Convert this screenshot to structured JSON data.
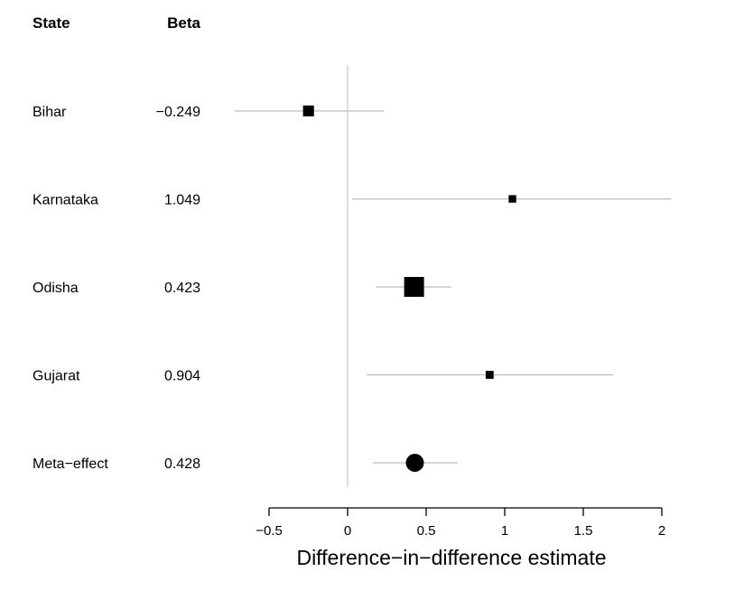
{
  "chart_data": {
    "type": "forest",
    "col_headers": {
      "label": "State",
      "value": "Beta"
    },
    "rows": [
      {
        "label": "Bihar",
        "beta_text": "−0.249",
        "estimate": -0.249,
        "ci_low": -0.72,
        "ci_high": 0.23,
        "marker": "square",
        "weight": 0.55
      },
      {
        "label": "Karnataka",
        "beta_text": "1.049",
        "estimate": 1.049,
        "ci_low": 0.03,
        "ci_high": 2.06,
        "marker": "square",
        "weight": 0.38
      },
      {
        "label": "Odisha",
        "beta_text": "0.423",
        "estimate": 0.423,
        "ci_low": 0.18,
        "ci_high": 0.66,
        "marker": "square",
        "weight": 1.0
      },
      {
        "label": "Gujarat",
        "beta_text": "0.904",
        "estimate": 0.904,
        "ci_low": 0.12,
        "ci_high": 1.69,
        "marker": "square",
        "weight": 0.4
      },
      {
        "label": "Meta−effect",
        "beta_text": "0.428",
        "estimate": 0.428,
        "ci_low": 0.16,
        "ci_high": 0.7,
        "marker": "circle",
        "weight": 0.75
      }
    ],
    "xlabel": "Difference−in−difference estimate",
    "xlim": [
      -0.5,
      2
    ],
    "xticks": [
      -0.5,
      0,
      0.5,
      1,
      1.5,
      2
    ],
    "xtick_labels": [
      "−0.5",
      "0",
      "0.5",
      "1",
      "1.5",
      "2"
    ],
    "reference_line": 0
  }
}
